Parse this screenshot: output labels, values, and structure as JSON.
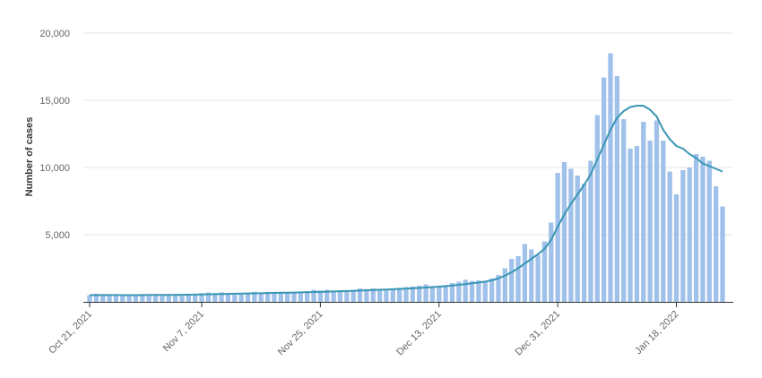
{
  "chart_data": {
    "type": "bar",
    "ylabel": "Number of cases",
    "ylim": [
      0,
      20000
    ],
    "y_ticks": [
      0,
      5000,
      10000,
      15000,
      20000
    ],
    "y_tick_labels": [
      "",
      "5,000",
      "10,000",
      "15,000",
      "20,000"
    ],
    "x_tick_labels": [
      "Oct 21, 2021",
      "Nov 7, 2021",
      "Nov 25, 2021",
      "Dec 13, 2021",
      "Dec 31, 2021",
      "Jan 18, 2022"
    ],
    "x_tick_indices": [
      0,
      17,
      35,
      53,
      71,
      89
    ],
    "grid": true,
    "colors": {
      "bars": "#a0c1ea",
      "line": "#3a96b4",
      "grid": "#e6e6e6",
      "axis": "#333333"
    },
    "series": [
      {
        "type": "bar",
        "values": [
          500,
          600,
          500,
          500,
          500,
          500,
          500,
          500,
          550,
          550,
          500,
          550,
          500,
          550,
          500,
          550,
          600,
          650,
          700,
          650,
          700,
          650,
          650,
          650,
          700,
          750,
          700,
          750,
          750,
          750,
          700,
          700,
          750,
          800,
          900,
          850,
          900,
          850,
          850,
          850,
          900,
          1000,
          950,
          1000,
          950,
          900,
          950,
          1050,
          1100,
          1150,
          1200,
          1300,
          1100,
          1150,
          1250,
          1400,
          1500,
          1650,
          1550,
          1600,
          1500,
          1750,
          2000,
          2500,
          3200,
          3400,
          4300,
          3900,
          3500,
          4500,
          5900,
          9600,
          10400,
          9900,
          9400,
          8800,
          10500,
          13900,
          16700,
          18500,
          16800,
          13600,
          11400,
          11600,
          13400,
          12000,
          13500,
          12000,
          9700,
          8000,
          9800,
          10000,
          11000,
          10800,
          10500,
          8600,
          7100
        ]
      },
      {
        "type": "line",
        "values": [
          500,
          505,
          508,
          505,
          505,
          503,
          503,
          503,
          510,
          515,
          515,
          520,
          520,
          525,
          525,
          530,
          540,
          550,
          565,
          575,
          585,
          595,
          605,
          615,
          625,
          635,
          645,
          655,
          665,
          675,
          685,
          695,
          705,
          715,
          730,
          745,
          760,
          775,
          790,
          805,
          820,
          840,
          860,
          880,
          900,
          920,
          940,
          960,
          985,
          1010,
          1040,
          1070,
          1100,
          1130,
          1170,
          1220,
          1270,
          1320,
          1380,
          1440,
          1510,
          1600,
          1750,
          1950,
          2200,
          2500,
          2850,
          3200,
          3550,
          3950,
          4600,
          5600,
          6500,
          7300,
          8000,
          8700,
          9500,
          10600,
          11700,
          12800,
          13700,
          14200,
          14500,
          14600,
          14600,
          14300,
          13800,
          12800,
          12100,
          11600,
          11400,
          11000,
          10700,
          10300,
          10100,
          9900,
          9700
        ]
      }
    ]
  }
}
